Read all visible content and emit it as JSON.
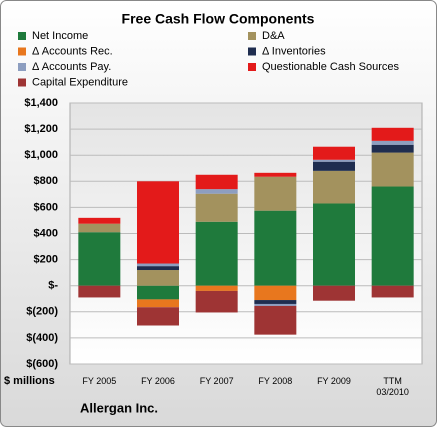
{
  "chart_data": {
    "type": "stacked_bar",
    "title": "Free Cash Flow Components",
    "subtitle": "Allergan Inc.",
    "y_label": "$ millions",
    "categories": [
      "FY 2005",
      "FY 2006",
      "FY 2007",
      "FY 2008",
      "FY 2009",
      "TTM 03/2010"
    ],
    "series": [
      {
        "name": "Net Income",
        "color": "#1f7a3c",
        "values": [
          410,
          -105,
          490,
          575,
          630,
          760
        ]
      },
      {
        "name": "D&A",
        "color": "#a3925e",
        "values": [
          65,
          120,
          215,
          260,
          250,
          260
        ]
      },
      {
        "name": "Δ Accounts Rec.",
        "color": "#e8771e",
        "values": [
          0,
          -60,
          -40,
          -110,
          0,
          0
        ]
      },
      {
        "name": "Δ Inventories",
        "color": "#1f2d4f",
        "values": [
          0,
          30,
          0,
          -30,
          70,
          60
        ]
      },
      {
        "name": "Δ Accounts Pay.",
        "color": "#8d9ec0",
        "values": [
          0,
          20,
          35,
          -15,
          15,
          30
        ]
      },
      {
        "name": "Questionable Cash Sources",
        "color": "#e31a1a",
        "values": [
          45,
          630,
          110,
          30,
          100,
          100
        ]
      },
      {
        "name": "Capital Expenditure",
        "color": "#9e3434",
        "values": [
          -90,
          -140,
          -165,
          -220,
          -115,
          -90
        ]
      }
    ],
    "ylim": [
      -600,
      1400
    ],
    "yticks": [
      {
        "value": -600,
        "label": "$(600)"
      },
      {
        "value": -400,
        "label": "$(400)"
      },
      {
        "value": -200,
        "label": "$(200)"
      },
      {
        "value": 0,
        "label": "$-"
      },
      {
        "value": 200,
        "label": "$200"
      },
      {
        "value": 400,
        "label": "$400"
      },
      {
        "value": 600,
        "label": "$600"
      },
      {
        "value": 800,
        "label": "$800"
      },
      {
        "value": 1000,
        "label": "$1,000"
      },
      {
        "value": 1200,
        "label": "$1,200"
      },
      {
        "value": 1400,
        "label": "$1,400"
      }
    ],
    "grid": true
  }
}
